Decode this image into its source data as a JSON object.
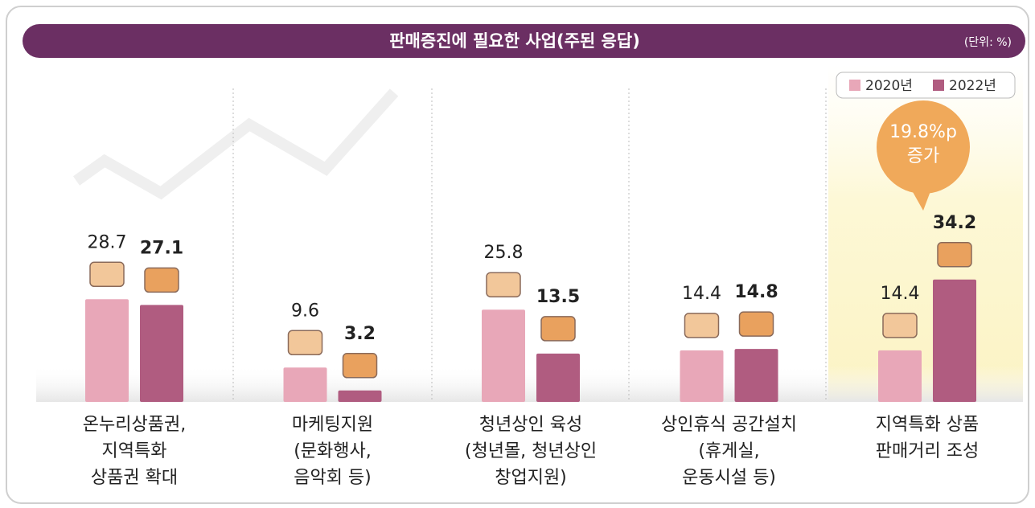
{
  "chart_data": {
    "type": "bar",
    "title": "판매증진에 필요한 사업(주된 응답)",
    "unit": "(단위: %)",
    "categories": [
      "온누리상품권,\n지역특화\n상품권 확대",
      "마케팅지원\n(문화행사,\n음악회 등)",
      "청년상인 육성\n(청년몰, 청년상인\n창업지원)",
      "상인휴식 공간설치\n(휴게실,\n운동시설 등)",
      "지역특화 상품\n판매거리 조성"
    ],
    "series": [
      {
        "name": "2020년",
        "color": "#e8a7b8",
        "values": [
          28.7,
          9.6,
          25.8,
          14.4,
          14.4
        ]
      },
      {
        "name": "2022년",
        "color": "#b05c80",
        "values": [
          27.1,
          3.2,
          13.5,
          14.8,
          34.2
        ]
      }
    ],
    "annotation": "19.8%p\n증가"
  }
}
